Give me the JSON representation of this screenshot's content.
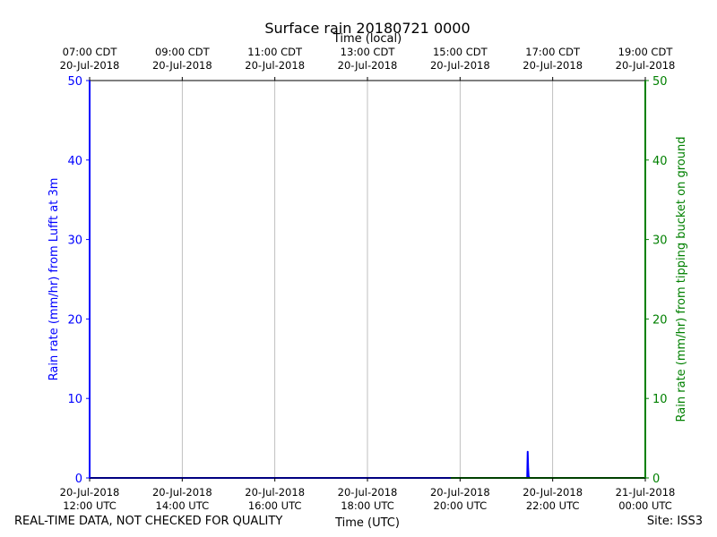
{
  "chart_data": {
    "type": "line",
    "title": "Surface rain 20180721 0000",
    "top_axis_label": "Time (local)",
    "xlabel": "Time (UTC)",
    "ylabel_left": "Rain rate (mm/hr) from Lufft at 3m",
    "ylabel_right": "Rain rate (mm/hr) from tipping bucket on ground",
    "xlim_hours_utc": [
      12,
      24
    ],
    "ylim": [
      0,
      50
    ],
    "yticks": [
      "0",
      "10",
      "20",
      "30",
      "40",
      "50"
    ],
    "grid": true,
    "bottom_ticks": [
      {
        "hour": 12,
        "line1": "20-Jul-2018",
        "line2": "12:00 UTC"
      },
      {
        "hour": 14,
        "line1": "20-Jul-2018",
        "line2": "14:00 UTC"
      },
      {
        "hour": 16,
        "line1": "20-Jul-2018",
        "line2": "16:00 UTC"
      },
      {
        "hour": 18,
        "line1": "20-Jul-2018",
        "line2": "18:00 UTC"
      },
      {
        "hour": 20,
        "line1": "20-Jul-2018",
        "line2": "20:00 UTC"
      },
      {
        "hour": 22,
        "line1": "20-Jul-2018",
        "line2": "22:00 UTC"
      },
      {
        "hour": 24,
        "line1": "21-Jul-2018",
        "line2": "00:00 UTC"
      }
    ],
    "top_ticks": [
      {
        "hour": 12,
        "line1": "07:00 CDT",
        "line2": "20-Jul-2018"
      },
      {
        "hour": 14,
        "line1": "09:00 CDT",
        "line2": "20-Jul-2018"
      },
      {
        "hour": 16,
        "line1": "11:00 CDT",
        "line2": "20-Jul-2018"
      },
      {
        "hour": 18,
        "line1": "13:00 CDT",
        "line2": "20-Jul-2018"
      },
      {
        "hour": 20,
        "line1": "15:00 CDT",
        "line2": "20-Jul-2018"
      },
      {
        "hour": 22,
        "line1": "17:00 CDT",
        "line2": "20-Jul-2018"
      },
      {
        "hour": 24,
        "line1": "19:00 CDT",
        "line2": "20-Jul-2018"
      }
    ],
    "series": [
      {
        "axis": "left",
        "color": "#0000ff",
        "x": [
          12.0,
          12.0,
          12.01,
          21.45,
          21.46,
          21.47,
          21.48,
          21.5,
          24.0
        ],
        "y": [
          50,
          0,
          0,
          0,
          3.3,
          1.2,
          0.2,
          0,
          0
        ]
      },
      {
        "axis": "right",
        "color": "#008000",
        "x": [
          19.8,
          24.0
        ],
        "y": [
          0,
          0
        ]
      }
    ],
    "left_axis_color": "#0000ff",
    "right_axis_color": "#008000"
  },
  "footer": {
    "left": "REAL-TIME DATA, NOT CHECKED FOR QUALITY",
    "right": "Site: ISS3"
  }
}
